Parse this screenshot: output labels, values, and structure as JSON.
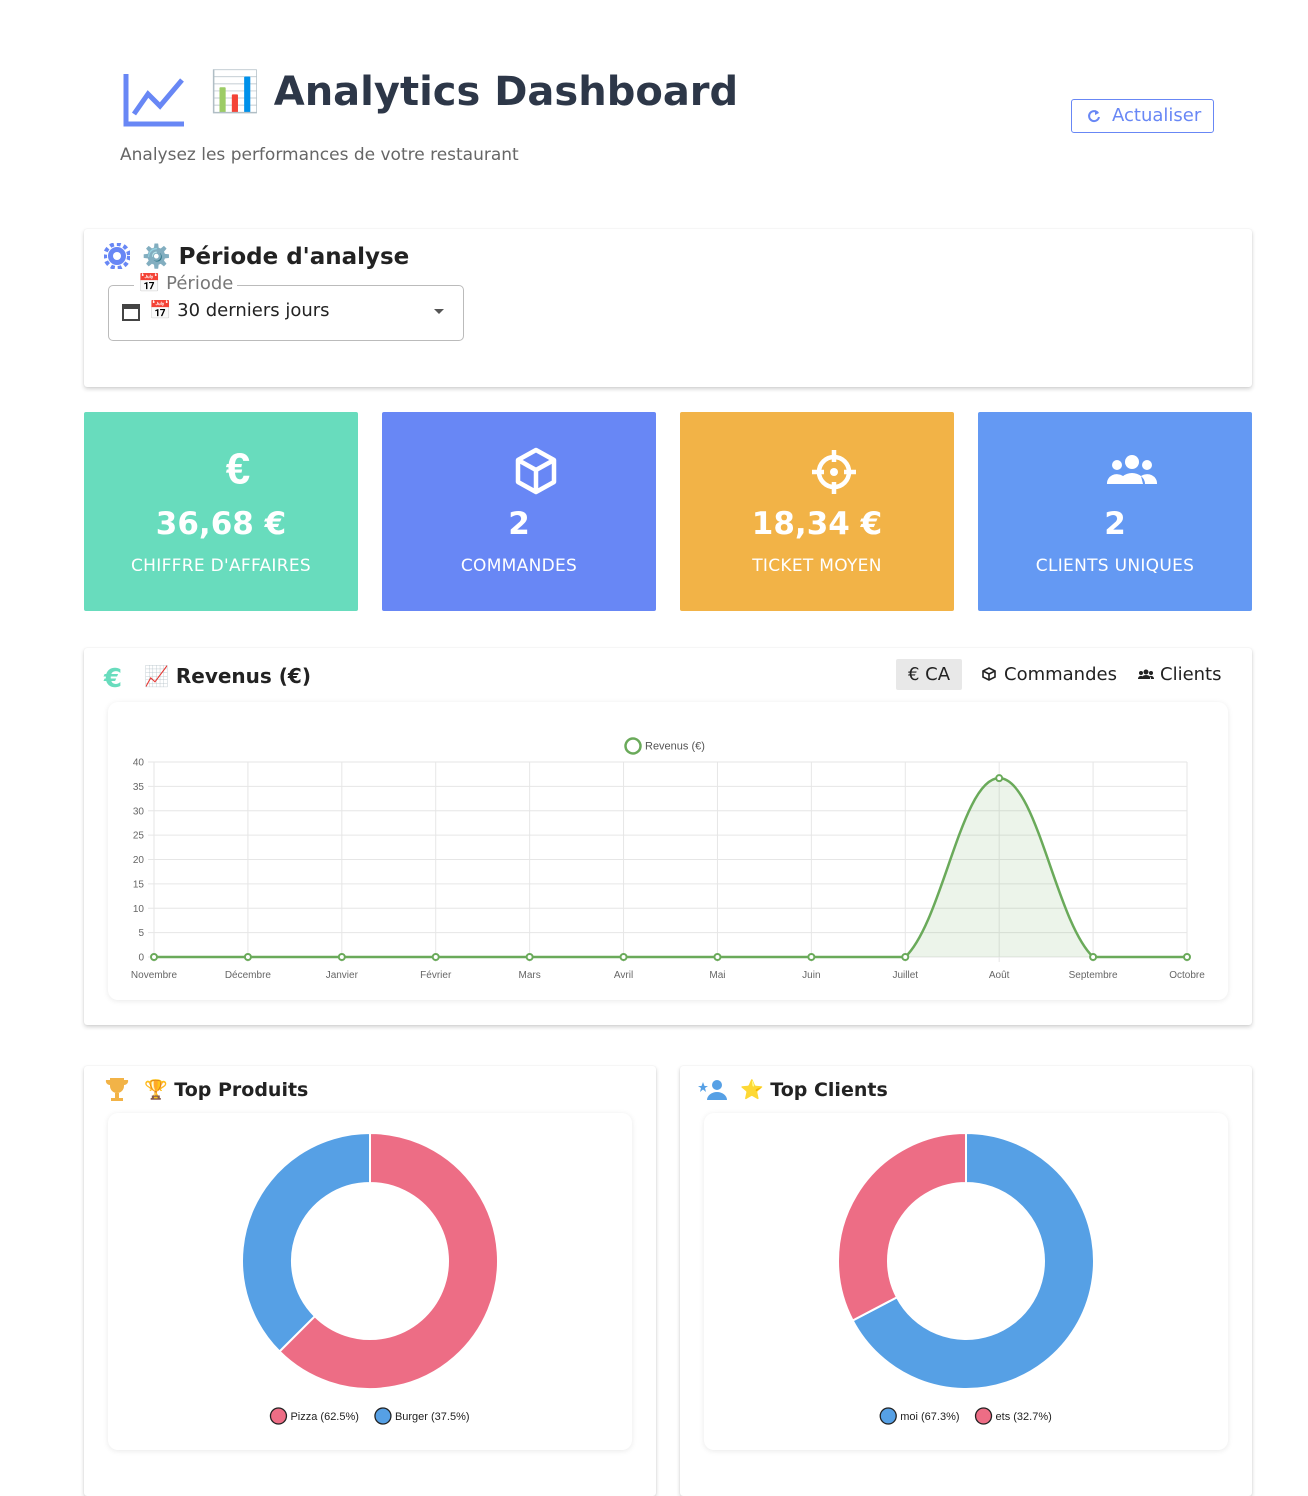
{
  "header": {
    "title": "📊 Analytics Dashboard",
    "subtitle": "Analysez les performances de votre restaurant",
    "button": "Actualiser"
  },
  "period": {
    "title": "⚙️ Période d'analyse",
    "label": "📅 Période",
    "value": "📅 30 derniers jours"
  },
  "kpis": [
    {
      "value": "36,68 €",
      "label": "CHIFFRE D'AFFAIRES",
      "color": "#68dcbd"
    },
    {
      "value": "2",
      "label": "COMMANDES",
      "color": "#6887f5"
    },
    {
      "value": "18,34 €",
      "label": "TICKET MOYEN",
      "color": "#f2b347"
    },
    {
      "value": "2",
      "label": "CLIENTS UNIQUES",
      "color": "#6499f3"
    }
  ],
  "tabs": [
    "€ CA",
    "Commandes",
    "Clients"
  ],
  "chart_data": [
    {
      "type": "line",
      "title": "📈 Revenus (€)",
      "categories": [
        "Novembre",
        "Décembre",
        "Janvier",
        "Février",
        "Mars",
        "Avril",
        "Mai",
        "Juin",
        "Juillet",
        "Août",
        "Septembre",
        "Octobre"
      ],
      "series": [
        {
          "name": "Revenus (€)",
          "color": "#6aaa5a",
          "values": [
            0,
            0,
            0,
            0,
            0,
            0,
            0,
            0,
            0,
            36.68,
            0,
            0
          ]
        }
      ],
      "ylim": [
        0,
        40
      ],
      "yticks": [
        0,
        5,
        10,
        15,
        20,
        25,
        30,
        35,
        40
      ],
      "grid": true,
      "legend": "top"
    },
    {
      "type": "pie",
      "title": "🏆 Top Produits",
      "categories": [
        "Pizza (62.5%)",
        "Burger (37.5%)"
      ],
      "values": [
        62.5,
        37.5
      ],
      "colors": [
        "#ed6d85",
        "#56a0e5"
      ],
      "legend": "bottom"
    },
    {
      "type": "pie",
      "title": "⭐ Top Clients",
      "categories": [
        "moi (67.3%)",
        "ets (32.7%)"
      ],
      "values": [
        67.3,
        32.7
      ],
      "colors": [
        "#56a0e5",
        "#ed6d85"
      ],
      "legend": "bottom"
    }
  ]
}
